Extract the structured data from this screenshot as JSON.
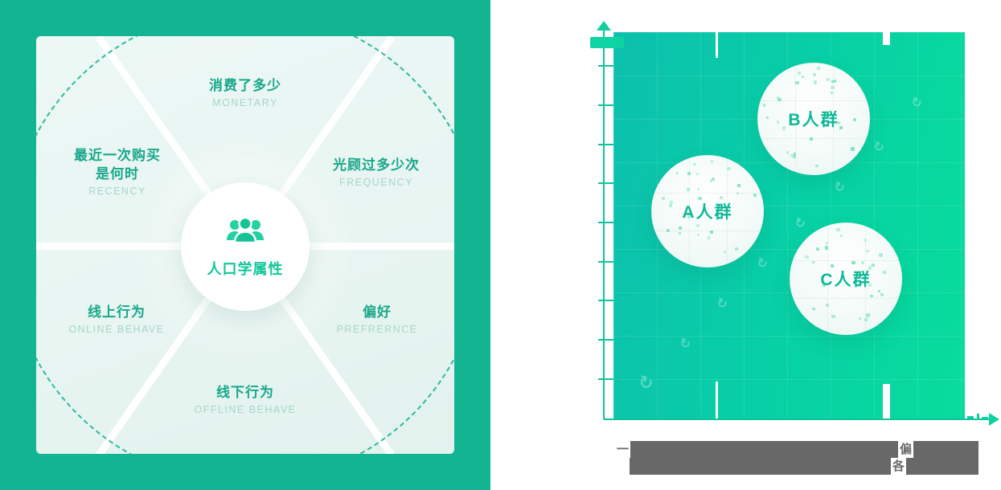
{
  "colors": {
    "left_background": "#12b492",
    "card_cell": "#e8f5f1",
    "zh_label_green": "#18a78b",
    "en_label_mint": "#a3d7c7",
    "center_label_green": "#12c79a",
    "icon_green": "#1ecd9e",
    "chart_gradient_teal": "#0cc0ad",
    "chart_gradient_green": "#08dc9b",
    "axis_green": "#10c29c",
    "cluster_label_green": "#0db995",
    "caption_gray": "#686868"
  },
  "left_panel": {
    "center": {
      "label": "人口学属性",
      "icon": "people-group-icon"
    },
    "segments": [
      {
        "zh": "消费了多少",
        "en": "MONETARY"
      },
      {
        "zh_line1": "最近一次购买",
        "zh_line2": "是何时",
        "en": "RECENCY"
      },
      {
        "zh": "光顾过多少次",
        "en": "FREQUENCY"
      },
      {
        "zh": "线上行为",
        "en": "ONLINE BEHAVE"
      },
      {
        "zh": "偏好",
        "en": "PREFRERNCE"
      },
      {
        "zh": "线下行为",
        "en": "OFFLINE BEHAVE"
      }
    ]
  },
  "right_panel": {
    "clusters": [
      {
        "label": "B人群"
      },
      {
        "label": "A人群"
      },
      {
        "label": "C人群"
      }
    ],
    "caption": {
      "fragment_1": "一",
      "fragment_2": "偏",
      "fragment_3": "各"
    }
  }
}
